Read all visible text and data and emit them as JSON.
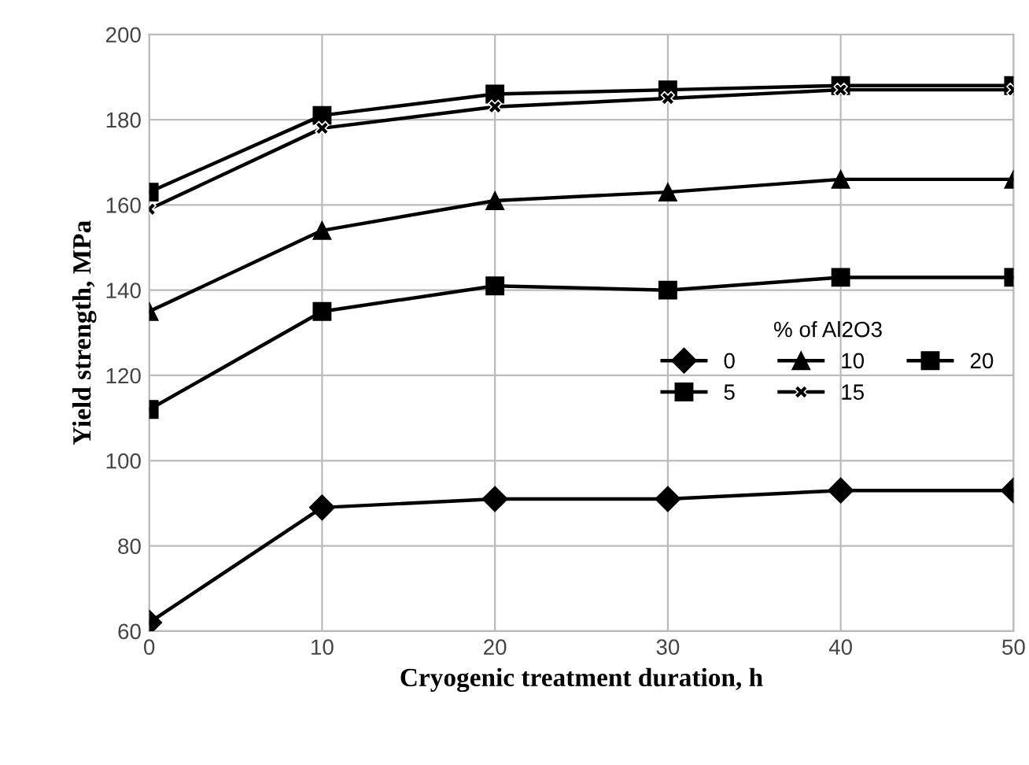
{
  "chart_data": {
    "type": "line",
    "xlabel": "Cryogenic treatment duration, h",
    "ylabel": "Yield strength, MPa",
    "legend_title": "% of Al2O3",
    "x": [
      0,
      10,
      20,
      30,
      40,
      50
    ],
    "series": [
      {
        "name": "0",
        "color": "#000000",
        "marker": "diamond",
        "values": [
          62,
          89,
          91,
          91,
          93,
          93
        ]
      },
      {
        "name": "5",
        "color": "#000000",
        "marker": "square",
        "values": [
          112,
          135,
          141,
          140,
          143,
          143
        ]
      },
      {
        "name": "10",
        "color": "#000000",
        "marker": "triangle",
        "values": [
          135,
          154,
          161,
          163,
          166,
          166
        ]
      },
      {
        "name": "15",
        "color": "#000000",
        "marker": "cross",
        "values": [
          159,
          178,
          183,
          185,
          187,
          187
        ]
      },
      {
        "name": "20",
        "color": "#000000",
        "marker": "square",
        "values": [
          163,
          181,
          186,
          187,
          188,
          188
        ]
      }
    ],
    "xlim": [
      0,
      50
    ],
    "xticks": [
      0,
      10,
      20,
      30,
      40,
      50
    ],
    "ylim": [
      60,
      200
    ],
    "yticks": [
      60,
      80,
      100,
      120,
      140,
      160,
      180,
      200
    ],
    "grid": true,
    "legend": "center right",
    "line_style": "solid"
  }
}
